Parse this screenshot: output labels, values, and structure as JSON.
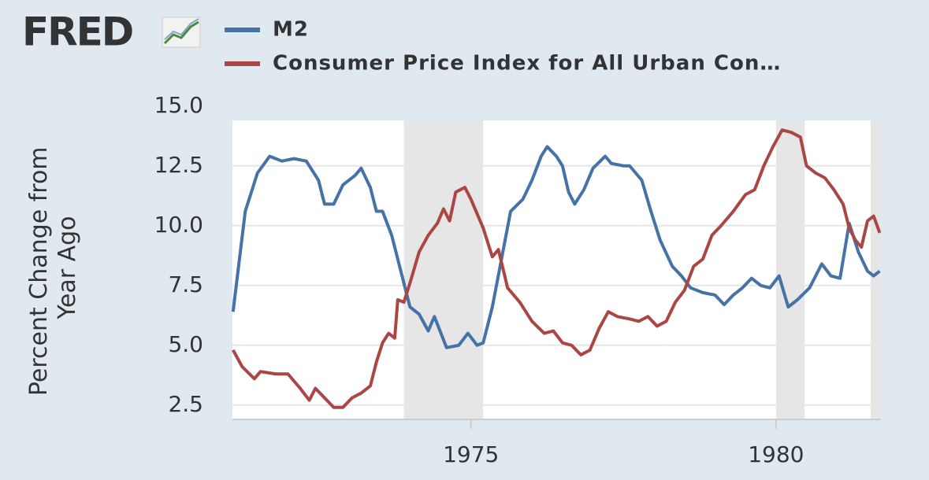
{
  "logo": "FRED",
  "chart_data": {
    "type": "line",
    "ylabel": [
      "Percent Change from",
      "Year Ago"
    ],
    "xlim": [
      1971.09,
      1981.72
    ],
    "ylim": [
      1.9,
      14.4
    ],
    "xticks": [
      1975,
      1980
    ],
    "yticks": [
      {
        "value": 2.5,
        "label": "2.5"
      },
      {
        "value": 5,
        "label": "5.0"
      },
      {
        "value": 7.5,
        "label": "7.5"
      },
      {
        "value": 10,
        "label": "10.0"
      },
      {
        "value": 12.5,
        "label": "12.5"
      },
      {
        "value": 15,
        "label": "15.0"
      }
    ],
    "grid": true,
    "recessions": [
      [
        1973.9,
        1975.2
      ],
      [
        1980.0,
        1980.47
      ],
      [
        1981.55,
        1981.72
      ]
    ],
    "series": [
      {
        "name": "M2",
        "color": "#4572a7",
        "x": [
          1971.1,
          1971.3,
          1971.5,
          1971.7,
          1971.9,
          1972.1,
          1972.3,
          1972.5,
          1972.6,
          1972.75,
          1972.9,
          1973.1,
          1973.2,
          1973.35,
          1973.45,
          1973.55,
          1973.7,
          1973.85,
          1974.0,
          1974.15,
          1974.3,
          1974.4,
          1974.6,
          1974.8,
          1974.95,
          1975.1,
          1975.2,
          1975.35,
          1975.5,
          1975.65,
          1975.85,
          1976.0,
          1976.15,
          1976.25,
          1976.4,
          1976.5,
          1976.6,
          1976.7,
          1976.85,
          1977.0,
          1977.2,
          1977.3,
          1977.5,
          1977.6,
          1977.8,
          1977.95,
          1978.1,
          1978.3,
          1978.45,
          1978.6,
          1978.8,
          1979.0,
          1979.15,
          1979.3,
          1979.45,
          1979.6,
          1979.75,
          1979.9,
          1980.05,
          1980.2,
          1980.35,
          1980.55,
          1980.75,
          1980.9,
          1981.05,
          1981.2,
          1981.35,
          1981.5,
          1981.6,
          1981.7
        ],
        "values": [
          6.4,
          10.6,
          12.2,
          12.9,
          12.7,
          12.8,
          12.7,
          11.9,
          10.9,
          10.9,
          11.7,
          12.1,
          12.4,
          11.6,
          10.6,
          10.6,
          9.6,
          8.1,
          6.6,
          6.3,
          5.6,
          6.2,
          4.9,
          5.0,
          5.5,
          5.0,
          5.1,
          6.6,
          8.6,
          10.6,
          11.1,
          11.9,
          12.9,
          13.3,
          12.9,
          12.5,
          11.4,
          10.9,
          11.5,
          12.4,
          12.9,
          12.6,
          12.5,
          12.5,
          11.9,
          10.6,
          9.4,
          8.3,
          7.9,
          7.4,
          7.2,
          7.1,
          6.7,
          7.1,
          7.4,
          7.8,
          7.5,
          7.4,
          7.9,
          6.6,
          6.9,
          7.4,
          8.4,
          7.9,
          7.8,
          10.1,
          8.9,
          8.1,
          7.9,
          8.1
        ]
      },
      {
        "name": "Consumer Price Index for All Urban Con…",
        "color": "#aa4643",
        "x": [
          1971.1,
          1971.25,
          1971.45,
          1971.55,
          1971.8,
          1972.0,
          1972.2,
          1972.35,
          1972.45,
          1972.6,
          1972.75,
          1972.9,
          1973.05,
          1973.2,
          1973.35,
          1973.45,
          1973.55,
          1973.65,
          1973.75,
          1973.8,
          1973.9,
          1974.0,
          1974.15,
          1974.3,
          1974.45,
          1974.55,
          1974.65,
          1974.75,
          1974.9,
          1975.0,
          1975.2,
          1975.35,
          1975.45,
          1975.6,
          1975.8,
          1976.0,
          1976.2,
          1976.35,
          1976.5,
          1976.65,
          1976.8,
          1976.95,
          1977.1,
          1977.25,
          1977.4,
          1977.6,
          1977.75,
          1977.9,
          1978.05,
          1978.2,
          1978.35,
          1978.5,
          1978.65,
          1978.8,
          1978.95,
          1979.1,
          1979.3,
          1979.5,
          1979.65,
          1979.8,
          1979.95,
          1980.1,
          1980.25,
          1980.4,
          1980.5,
          1980.65,
          1980.8,
          1980.95,
          1981.1,
          1981.2,
          1981.3,
          1981.4,
          1981.5,
          1981.6,
          1981.7
        ],
        "values": [
          4.8,
          4.1,
          3.6,
          3.9,
          3.8,
          3.8,
          3.2,
          2.7,
          3.2,
          2.8,
          2.4,
          2.4,
          2.8,
          3.0,
          3.3,
          4.3,
          5.1,
          5.5,
          5.3,
          6.9,
          6.8,
          7.6,
          8.9,
          9.6,
          10.1,
          10.7,
          10.2,
          11.4,
          11.6,
          11.1,
          9.9,
          8.7,
          9.0,
          7.4,
          6.8,
          6.0,
          5.5,
          5.6,
          5.1,
          5.0,
          4.6,
          4.8,
          5.7,
          6.4,
          6.2,
          6.1,
          6.0,
          6.2,
          5.8,
          6.0,
          6.8,
          7.3,
          8.3,
          8.6,
          9.6,
          10.0,
          10.6,
          11.3,
          11.5,
          12.5,
          13.3,
          14.0,
          13.9,
          13.7,
          12.5,
          12.2,
          12.0,
          11.5,
          10.9,
          9.9,
          9.4,
          9.1,
          10.2,
          10.4,
          9.7
        ]
      }
    ]
  }
}
